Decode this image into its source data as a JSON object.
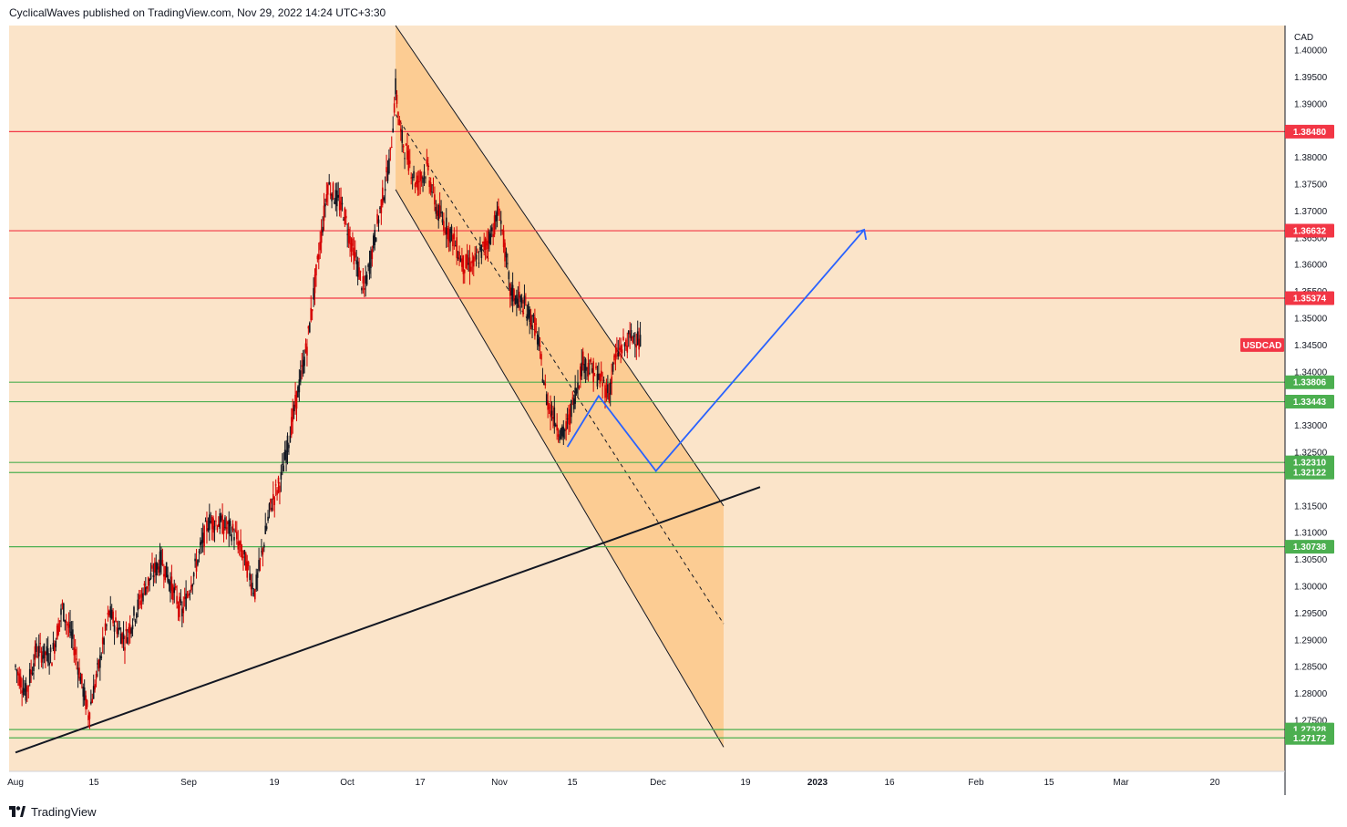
{
  "header": {
    "published": "CyclicalWaves published on TradingView.com, Nov 29, 2022 14:24 UTC+3:30"
  },
  "footer": {
    "brand": "TradingView"
  },
  "colors": {
    "background": "#fbe4c9",
    "channel": "#fcc889",
    "red_level": "#f23645",
    "green_level": "#4caf50",
    "projection": "#2962ff",
    "candle_up": "#131722",
    "candle_down": "#d50000"
  },
  "chart_data": {
    "type": "candlestick",
    "symbol": "USDCAD",
    "currency": "CAD",
    "ylim": [
      1.27,
      1.4
    ],
    "y_ticks": [
      "1.40000",
      "1.39500",
      "1.39000",
      "1.38000",
      "1.37500",
      "1.37000",
      "1.36500",
      "1.36000",
      "1.35500",
      "1.35000",
      "1.34500",
      "1.34000",
      "1.33000",
      "1.32500",
      "1.31500",
      "1.31000",
      "1.30500",
      "1.30000",
      "1.29500",
      "1.29000",
      "1.28500",
      "1.28000",
      "1.27500"
    ],
    "x_ticks": [
      "Aug",
      "15",
      "Sep",
      "19",
      "Oct",
      "17",
      "Nov",
      "15",
      "Dec",
      "19",
      "2023",
      "16",
      "Feb",
      "15",
      "Mar",
      "20"
    ],
    "red_levels": [
      {
        "price": 1.3848,
        "label": "1.38480"
      },
      {
        "price": 1.36632,
        "label": "1.36632"
      },
      {
        "price": 1.35374,
        "label": "1.35374"
      }
    ],
    "green_levels": [
      {
        "price": 1.33806,
        "label": "1.33806"
      },
      {
        "price": 1.33443,
        "label": "1.33443"
      },
      {
        "price": 1.3231,
        "label": "1.32310"
      },
      {
        "price": 1.32122,
        "label": "1.32122"
      },
      {
        "price": 1.30738,
        "label": "1.30738"
      },
      {
        "price": 1.27328,
        "label": "1.27328"
      },
      {
        "price": 1.27172,
        "label": "1.27172"
      }
    ],
    "symbol_badge": {
      "label": "USDCAD",
      "price": 1.345
    },
    "price_path": [
      [
        "Aug 1",
        1.285
      ],
      [
        "Aug 3",
        1.28
      ],
      [
        "Aug 5",
        1.288
      ],
      [
        "Aug 8",
        1.287
      ],
      [
        "Aug 10",
        1.296
      ],
      [
        "Aug 12",
        1.29
      ],
      [
        "Aug 15",
        1.276
      ],
      [
        "Aug 17",
        1.285
      ],
      [
        "Aug 19",
        1.295
      ],
      [
        "Aug 22",
        1.29
      ],
      [
        "Aug 24",
        1.295
      ],
      [
        "Aug 26",
        1.3
      ],
      [
        "Aug 29",
        1.305
      ],
      [
        "Aug 31",
        1.3
      ],
      [
        "Sep 2",
        1.295
      ],
      [
        "Sep 5",
        1.305
      ],
      [
        "Sep 7",
        1.312
      ],
      [
        "Sep 9",
        1.312
      ],
      [
        "Sep 12",
        1.31
      ],
      [
        "Sep 14",
        1.305
      ],
      [
        "Sep 16",
        1.299
      ],
      [
        "Sep 19",
        1.315
      ],
      [
        "Sep 21",
        1.32
      ],
      [
        "Sep 23",
        1.33
      ],
      [
        "Sep 26",
        1.345
      ],
      [
        "Sep 28",
        1.36
      ],
      [
        "Sep 30",
        1.375
      ],
      [
        "Oct 3",
        1.37
      ],
      [
        "Oct 5",
        1.362
      ],
      [
        "Oct 7",
        1.355
      ],
      [
        "Oct 10",
        1.37
      ],
      [
        "Oct 12",
        1.38
      ],
      [
        "Oct 13",
        1.393
      ],
      [
        "Oct 14",
        1.384
      ],
      [
        "Oct 17",
        1.375
      ],
      [
        "Oct 19",
        1.378
      ],
      [
        "Oct 21",
        1.37
      ],
      [
        "Oct 24",
        1.365
      ],
      [
        "Oct 26",
        1.36
      ],
      [
        "Oct 28",
        1.36
      ],
      [
        "Oct 31",
        1.365
      ],
      [
        "Nov 2",
        1.37
      ],
      [
        "Nov 4",
        1.355
      ],
      [
        "Nov 7",
        1.352
      ],
      [
        "Nov 9",
        1.348
      ],
      [
        "Nov 11",
        1.335
      ],
      [
        "Nov 14",
        1.328
      ],
      [
        "Nov 15",
        1.33
      ],
      [
        "Nov 17",
        1.338
      ],
      [
        "Nov 18",
        1.342
      ],
      [
        "Nov 21",
        1.339
      ],
      [
        "Nov 23",
        1.336
      ],
      [
        "Nov 24",
        1.342
      ],
      [
        "Nov 25",
        1.344
      ],
      [
        "Nov 28",
        1.347
      ],
      [
        "Nov 29",
        1.345
      ]
    ],
    "channel": {
      "upper": [
        [
          "Oct 13",
          1.4
        ],
        [
          "Dec 15",
          1.315
        ]
      ],
      "lower": [
        [
          "Oct 13",
          1.374
        ],
        [
          "Dec 15",
          1.27
        ]
      ],
      "midline": [
        [
          "Oct 13",
          1.388
        ],
        [
          "Dec 15",
          1.293
        ]
      ]
    },
    "trendline": [
      [
        "Aug 1",
        1.269
      ],
      [
        "Dec 22",
        1.3185
      ]
    ],
    "projection": [
      [
        "Nov 15",
        1.326
      ],
      [
        "Nov 21",
        1.3355
      ],
      [
        "Dec 2",
        1.3215
      ],
      [
        "Jan 11",
        1.3665
      ]
    ]
  }
}
